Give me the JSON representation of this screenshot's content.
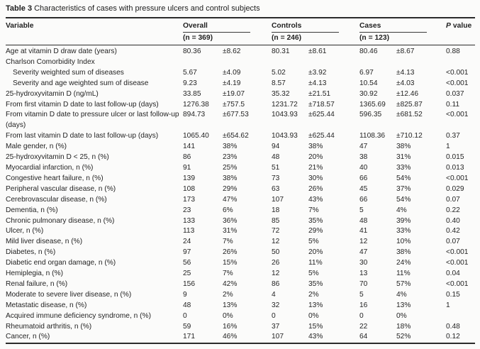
{
  "title": {
    "label": "Table 3",
    "text": "Characteristics of cases with pressure ulcers and control subjects"
  },
  "header": {
    "variable": "Variable",
    "groups": [
      {
        "label": "Overall",
        "n": "(n = 369)"
      },
      {
        "label": "Controls",
        "n": "(n = 246)"
      },
      {
        "label": "Cases",
        "n": "(n = 123)"
      }
    ],
    "p_label": "P",
    "p_rest": "value"
  },
  "table": {
    "column_names": [
      "Variable",
      "Overall mean/n",
      "Overall SD/%",
      "Controls mean/n",
      "Controls SD/%",
      "Cases mean/n",
      "Cases SD/%",
      "P value"
    ],
    "rows": [
      {
        "variable": "Age at vitamin D draw date (years)",
        "indent": false,
        "cells": [
          "80.36",
          "±8.62",
          "80.31",
          "±8.61",
          "80.46",
          "±8.67",
          "0.88"
        ]
      },
      {
        "variable": "Charlson Comorbidity Index",
        "indent": false,
        "cells": [
          "",
          "",
          "",
          "",
          "",
          "",
          ""
        ]
      },
      {
        "variable": "Severity weighted sum of diseases",
        "indent": true,
        "cells": [
          "5.67",
          "±4.09",
          "5.02",
          "±3.92",
          "6.97",
          "±4.13",
          "<0.001"
        ]
      },
      {
        "variable": "Severity and age weighted sum of disease",
        "indent": true,
        "cells": [
          "9.23",
          "±4.19",
          "8.57",
          "±4.13",
          "10.54",
          "±4.03",
          "<0.001"
        ]
      },
      {
        "variable": "25-hydroxyvitamin D (ng/mL)",
        "indent": false,
        "cells": [
          "33.85",
          "±19.07",
          "35.32",
          "±21.51",
          "30.92",
          "±12.46",
          "0.037"
        ]
      },
      {
        "variable": "From first vitamin D date to last follow-up (days)",
        "indent": false,
        "cells": [
          "1276.38",
          "±757.5",
          "1231.72",
          "±718.57",
          "1365.69",
          "±825.87",
          "0.11"
        ]
      },
      {
        "variable": "From vitamin D date to pressure ulcer or last follow-up (days)",
        "indent": false,
        "cells": [
          "894.73",
          "±677.53",
          "1043.93",
          "±625.44",
          "596.35",
          "±681.52",
          "<0.001"
        ]
      },
      {
        "variable": "From last vitamin D date to last follow-up (days)",
        "indent": false,
        "cells": [
          "1065.40",
          "±654.62",
          "1043.93",
          "±625.44",
          "1108.36",
          "±710.12",
          "0.37"
        ]
      },
      {
        "variable": "Male gender, n (%)",
        "indent": false,
        "cells": [
          "141",
          "38%",
          "94",
          "38%",
          "47",
          "38%",
          "1"
        ]
      },
      {
        "variable": "25-hydroxyvitamin D < 25, n (%)",
        "indent": false,
        "cells": [
          "86",
          "23%",
          "48",
          "20%",
          "38",
          "31%",
          "0.015"
        ]
      },
      {
        "variable": "Myocardial infarction, n (%)",
        "indent": false,
        "cells": [
          "91",
          "25%",
          "51",
          "21%",
          "40",
          "33%",
          "0.013"
        ]
      },
      {
        "variable": "Congestive heart failure, n (%)",
        "indent": false,
        "cells": [
          "139",
          "38%",
          "73",
          "30%",
          "66",
          "54%",
          "<0.001"
        ]
      },
      {
        "variable": "Peripheral vascular disease, n (%)",
        "indent": false,
        "cells": [
          "108",
          "29%",
          "63",
          "26%",
          "45",
          "37%",
          "0.029"
        ]
      },
      {
        "variable": "Cerebrovascular disease, n (%)",
        "indent": false,
        "cells": [
          "173",
          "47%",
          "107",
          "43%",
          "66",
          "54%",
          "0.07"
        ]
      },
      {
        "variable": "Dementia, n (%)",
        "indent": false,
        "cells": [
          "23",
          "6%",
          "18",
          "7%",
          "5",
          "4%",
          "0.22"
        ]
      },
      {
        "variable": "Chronic pulmonary disease, n (%)",
        "indent": false,
        "cells": [
          "133",
          "36%",
          "85",
          "35%",
          "48",
          "39%",
          "0.40"
        ]
      },
      {
        "variable": "Ulcer, n (%)",
        "indent": false,
        "cells": [
          "113",
          "31%",
          "72",
          "29%",
          "41",
          "33%",
          "0.42"
        ]
      },
      {
        "variable": "Mild liver disease, n (%)",
        "indent": false,
        "cells": [
          "24",
          "7%",
          "12",
          "5%",
          "12",
          "10%",
          "0.07"
        ]
      },
      {
        "variable": "Diabetes, n (%)",
        "indent": false,
        "cells": [
          "97",
          "26%",
          "50",
          "20%",
          "47",
          "38%",
          "<0.001"
        ]
      },
      {
        "variable": "Diabetic end organ damage, n (%)",
        "indent": false,
        "cells": [
          "56",
          "15%",
          "26",
          "11%",
          "30",
          "24%",
          "<0.001"
        ]
      },
      {
        "variable": "Hemiplegia, n (%)",
        "indent": false,
        "cells": [
          "25",
          "7%",
          "12",
          "5%",
          "13",
          "11%",
          "0.04"
        ]
      },
      {
        "variable": "Renal failure, n (%)",
        "indent": false,
        "cells": [
          "156",
          "42%",
          "86",
          "35%",
          "70",
          "57%",
          "<0.001"
        ]
      },
      {
        "variable": "Moderate to severe liver disease, n (%)",
        "indent": false,
        "cells": [
          "9",
          "2%",
          "4",
          "2%",
          "5",
          "4%",
          "0.15"
        ]
      },
      {
        "variable": "Metastatic disease, n (%)",
        "indent": false,
        "cells": [
          "48",
          "13%",
          "32",
          "13%",
          "16",
          "13%",
          "1"
        ]
      },
      {
        "variable": "Acquired immune deficiency syndrome, n (%)",
        "indent": false,
        "cells": [
          "0",
          "0%",
          "0",
          "0%",
          "0",
          "0%",
          ""
        ]
      },
      {
        "variable": "Rheumatoid arthritis, n (%)",
        "indent": false,
        "cells": [
          "59",
          "16%",
          "37",
          "15%",
          "22",
          "18%",
          "0.48"
        ]
      },
      {
        "variable": "Cancer, n (%)",
        "indent": false,
        "cells": [
          "171",
          "46%",
          "107",
          "43%",
          "64",
          "52%",
          "0.12"
        ]
      }
    ]
  }
}
